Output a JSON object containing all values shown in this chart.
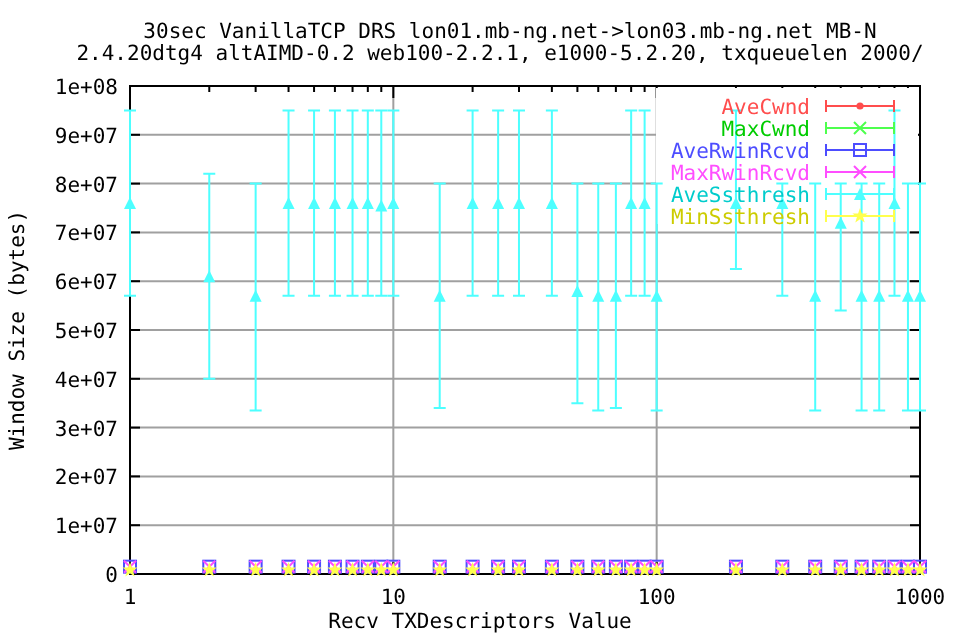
{
  "chart_data": {
    "type": "scatter",
    "title": "30sec VanillaTCP DRS lon01.mb-ng.net->lon03.mb-ng.net MB-N",
    "subtitle": "2.4.20dtg4 altAIMD-0.2 web100-2.2.1, e1000-5.2.20, txqueuelen 2000/",
    "xlabel": "Recv TXDescriptors Value",
    "ylabel": "Window Size (bytes)",
    "x": [
      1,
      2,
      3,
      4,
      5,
      6,
      7,
      8,
      9,
      10,
      15,
      20,
      25,
      30,
      40,
      50,
      60,
      70,
      80,
      90,
      100,
      200,
      300,
      400,
      500,
      600,
      700,
      800,
      900,
      1000
    ],
    "log": "x",
    "xlim": [
      1,
      1000
    ],
    "ylim": [
      0,
      100000000
    ],
    "xticks": [
      1,
      {
        "value": 2,
        "label": null
      },
      {
        "value": 3,
        "label": null
      },
      {
        "value": 4,
        "label": null
      },
      {
        "value": 5,
        "label": null
      },
      {
        "value": 6,
        "label": null
      },
      {
        "value": 7,
        "label": null
      },
      {
        "value": 8,
        "label": null
      },
      {
        "value": 9,
        "label": null
      },
      10,
      {
        "value": 20,
        "label": null
      },
      {
        "value": 30,
        "label": null
      },
      {
        "value": 40,
        "label": null
      },
      {
        "value": 50,
        "label": null
      },
      {
        "value": 60,
        "label": null
      },
      {
        "value": 70,
        "label": null
      },
      {
        "value": 80,
        "label": null
      },
      {
        "value": 90,
        "label": null
      },
      100,
      {
        "value": 200,
        "label": null
      },
      {
        "value": 300,
        "label": null
      },
      {
        "value": 400,
        "label": null
      },
      {
        "value": 500,
        "label": null
      },
      {
        "value": 600,
        "label": null
      },
      {
        "value": 700,
        "label": null
      },
      {
        "value": 800,
        "label": null
      },
      {
        "value": 900,
        "label": null
      },
      1000
    ],
    "yticks": [
      0,
      {
        "value": 10000000,
        "label": "1e+07"
      },
      {
        "value": 20000000,
        "label": "2e+07"
      },
      {
        "value": 30000000,
        "label": "3e+07"
      },
      {
        "value": 40000000,
        "label": "4e+07"
      },
      {
        "value": 50000000,
        "label": "5e+07"
      },
      {
        "value": 60000000,
        "label": "6e+07"
      },
      {
        "value": 70000000,
        "label": "7e+07"
      },
      {
        "value": 80000000,
        "label": "8e+07"
      },
      {
        "value": 90000000,
        "label": "9e+07"
      },
      {
        "value": 100000000,
        "label": "1e+08"
      }
    ],
    "grid": true,
    "legend": "top right",
    "series": [
      {
        "name": "AveCwnd",
        "color": "#ff4d4d",
        "marker": "circle",
        "values": [
          null,
          null,
          null,
          null,
          null,
          null,
          null,
          null,
          null,
          null,
          null,
          null,
          null,
          null,
          null,
          null,
          null,
          null,
          null,
          null,
          null,
          null,
          null,
          null,
          null,
          null,
          null,
          null,
          null,
          null
        ]
      },
      {
        "name": "MaxCwnd",
        "color": "#4dff4d",
        "marker": "cross",
        "values": [
          null,
          null,
          null,
          null,
          null,
          null,
          null,
          null,
          null,
          null,
          null,
          null,
          null,
          null,
          null,
          null,
          null,
          null,
          null,
          null,
          null,
          null,
          null,
          null,
          null,
          null,
          null,
          null,
          null,
          null
        ]
      },
      {
        "name": "AveRwinRcvd",
        "color": "#4d4dff",
        "marker": "square",
        "values": [
          1500000,
          1500000,
          1500000,
          1500000,
          1500000,
          1500000,
          1500000,
          1500000,
          1500000,
          1500000,
          1500000,
          1500000,
          1500000,
          1500000,
          1500000,
          1500000,
          1500000,
          1500000,
          1500000,
          1500000,
          1500000,
          1500000,
          1500000,
          1500000,
          1500000,
          1500000,
          1500000,
          1500000,
          1500000,
          1500000
        ]
      },
      {
        "name": "MaxRwinRcvd",
        "color": "#ff4dff",
        "marker": "cross",
        "values": [
          1500000,
          1500000,
          1500000,
          1500000,
          1500000,
          1500000,
          1500000,
          1500000,
          1500000,
          1500000,
          1500000,
          1500000,
          1500000,
          1500000,
          1500000,
          1500000,
          1500000,
          1500000,
          1500000,
          1500000,
          1500000,
          1500000,
          1500000,
          1500000,
          1500000,
          1500000,
          1500000,
          1500000,
          1500000,
          1500000
        ]
      },
      {
        "name": "AveSsthresh",
        "color": "#4dffff",
        "marker": "triangle",
        "values": [
          76000000,
          61000000,
          57000000,
          76000000,
          76000000,
          76000000,
          76000000,
          76000000,
          75500000,
          76000000,
          57000000,
          76000000,
          76000000,
          76000000,
          76000000,
          58000000,
          57000000,
          57000000,
          76000000,
          76000000,
          57000000,
          76000000,
          76000000,
          57000000,
          72000000,
          57000000,
          57000000,
          76000000,
          57000000,
          57000000
        ],
        "errors": [
          [
            57000000,
            95000000
          ],
          [
            40000000,
            82000000
          ],
          [
            33500000,
            80000000
          ],
          [
            57000000,
            95000000
          ],
          [
            57000000,
            95000000
          ],
          [
            57000000,
            95000000
          ],
          [
            57000000,
            95000000
          ],
          [
            57000000,
            95000000
          ],
          [
            57000000,
            95000000
          ],
          [
            57000000,
            95000000
          ],
          [
            34000000,
            80000000
          ],
          [
            57000000,
            95000000
          ],
          [
            57000000,
            95000000
          ],
          [
            57000000,
            95000000
          ],
          [
            57000000,
            95000000
          ],
          [
            35000000,
            80000000
          ],
          [
            33500000,
            80000000
          ],
          [
            34000000,
            80000000
          ],
          [
            57000000,
            95000000
          ],
          [
            57000000,
            95000000
          ],
          [
            33500000,
            80000000
          ],
          [
            62500000,
            95000000
          ],
          [
            57000000,
            80000000
          ],
          [
            33500000,
            80000000
          ],
          [
            54000000,
            80000000
          ],
          [
            33500000,
            80000000
          ],
          [
            33500000,
            80000000
          ],
          [
            57000000,
            95000000
          ],
          [
            33500000,
            80000000
          ],
          [
            33500000,
            80000000
          ]
        ]
      },
      {
        "name": "MinSsthresh",
        "color": "#ffff4d",
        "marker": "star",
        "values": [
          800000,
          800000,
          800000,
          800000,
          800000,
          800000,
          800000,
          800000,
          800000,
          800000,
          800000,
          800000,
          800000,
          800000,
          800000,
          800000,
          800000,
          800000,
          800000,
          800000,
          800000,
          800000,
          800000,
          800000,
          800000,
          800000,
          800000,
          800000,
          800000,
          800000
        ]
      }
    ]
  }
}
